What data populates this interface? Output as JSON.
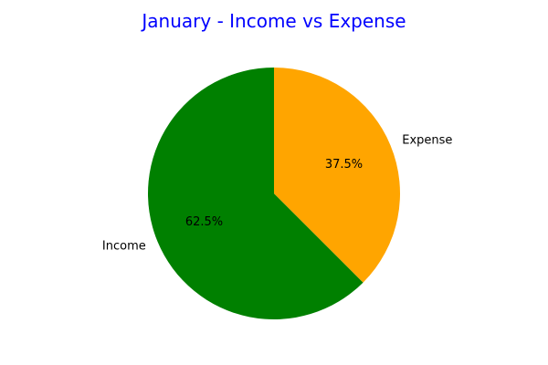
{
  "chart_data": {
    "type": "pie",
    "title": "January - Income vs Expense",
    "title_color": "#0000ff",
    "categories": [
      "Income",
      "Expense"
    ],
    "values": [
      62.5,
      37.5
    ],
    "value_labels": [
      "62.5%",
      "37.5%"
    ],
    "colors": [
      "#008000",
      "#ffa500"
    ],
    "start_angle_deg": 90,
    "direction": "counterclockwise",
    "legend": "none"
  }
}
